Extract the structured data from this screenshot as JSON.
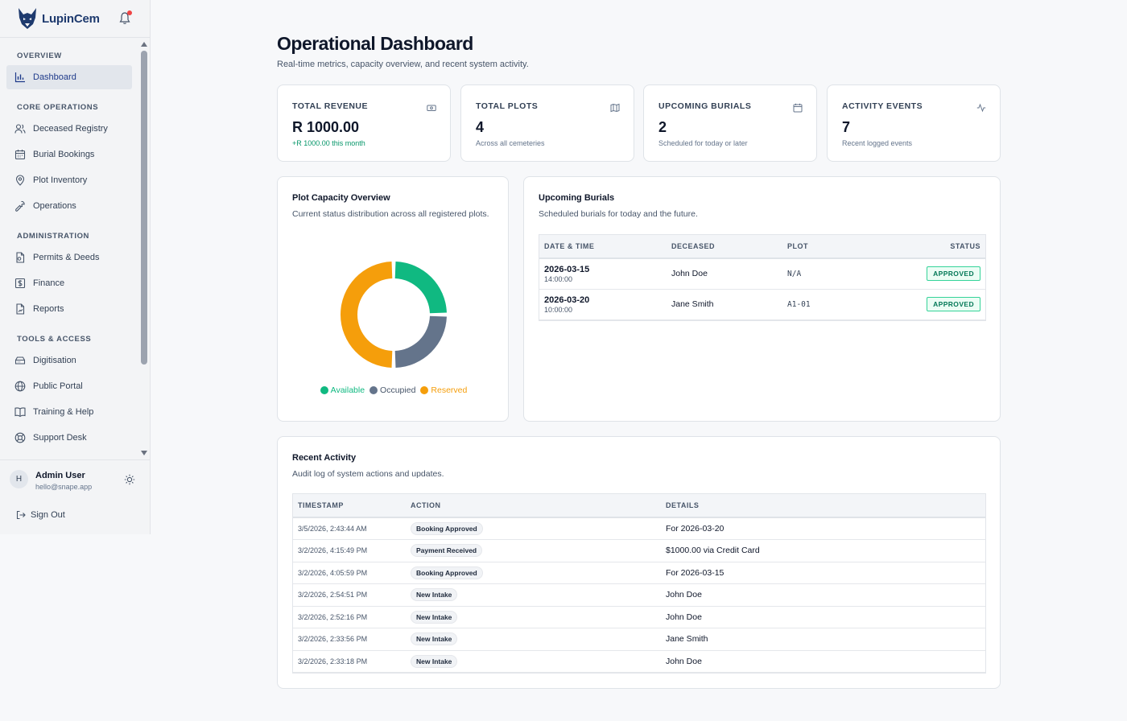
{
  "app": {
    "name": "LupinCem"
  },
  "sidebar": {
    "sections": [
      {
        "title": "OVERVIEW"
      },
      {
        "title": "CORE OPERATIONS"
      },
      {
        "title": "ADMINISTRATION"
      },
      {
        "title": "TOOLS & ACCESS"
      }
    ],
    "items": [
      {
        "label": "Dashboard",
        "icon": "bar-chart-icon",
        "active": true
      },
      {
        "label": "Deceased Registry",
        "icon": "users-icon"
      },
      {
        "label": "Burial Bookings",
        "icon": "calendar-icon"
      },
      {
        "label": "Plot Inventory",
        "icon": "map-pin-icon"
      },
      {
        "label": "Operations",
        "icon": "wrench-icon"
      },
      {
        "label": "Permits & Deeds",
        "icon": "file-icon"
      },
      {
        "label": "Finance",
        "icon": "dollar-icon"
      },
      {
        "label": "Reports",
        "icon": "report-icon"
      },
      {
        "label": "Digitisation",
        "icon": "scanner-icon"
      },
      {
        "label": "Public Portal",
        "icon": "globe-icon"
      },
      {
        "label": "Training & Help",
        "icon": "book-icon"
      },
      {
        "label": "Support Desk",
        "icon": "lifebuoy-icon"
      }
    ],
    "user": {
      "initial": "H",
      "name": "Admin User",
      "email": "hello@snape.app"
    },
    "sign_out": "Sign Out"
  },
  "header": {
    "title": "Operational Dashboard",
    "subtitle": "Real-time metrics, capacity overview, and recent system activity."
  },
  "stats": [
    {
      "label": "TOTAL REVENUE",
      "value": "R 1000.00",
      "hint": "+R 1000.00 this month",
      "icon": "money-icon"
    },
    {
      "label": "TOTAL PLOTS",
      "value": "4",
      "hint": "Across all cemeteries",
      "icon": "map-icon"
    },
    {
      "label": "UPCOMING BURIALS",
      "value": "2",
      "hint": "Scheduled for today or later",
      "icon": "calendar-icon"
    },
    {
      "label": "ACTIVITY EVENTS",
      "value": "7",
      "hint": "Recent logged events",
      "icon": "activity-icon"
    }
  ],
  "capacity": {
    "title": "Plot Capacity Overview",
    "subtitle": "Current status distribution across all registered plots."
  },
  "chart_data": {
    "type": "pie",
    "categories": [
      "Available",
      "Occupied",
      "Reserved"
    ],
    "values": [
      1,
      1,
      2
    ],
    "colors": [
      "#10b981",
      "#64748b",
      "#f59e0b"
    ],
    "legend": "bottom"
  },
  "burials": {
    "title": "Upcoming Burials",
    "subtitle": "Scheduled burials for today and the future.",
    "columns": [
      "DATE & TIME",
      "DECEASED",
      "PLOT",
      "STATUS"
    ],
    "rows": [
      {
        "date": "2026-03-15",
        "time": "14:00:00",
        "deceased": "John Doe",
        "plot": "N/A",
        "status": "APPROVED"
      },
      {
        "date": "2026-03-20",
        "time": "10:00:00",
        "deceased": "Jane Smith",
        "plot": "A1-01",
        "status": "APPROVED"
      }
    ]
  },
  "activity": {
    "title": "Recent Activity",
    "subtitle": "Audit log of system actions and updates.",
    "columns": [
      "TIMESTAMP",
      "ACTION",
      "DETAILS"
    ],
    "rows": [
      {
        "timestamp": "3/5/2026, 2:43:44 AM",
        "action": "Booking Approved",
        "details": "For 2026-03-20"
      },
      {
        "timestamp": "3/2/2026, 4:15:49 PM",
        "action": "Payment Received",
        "details": "$1000.00 via Credit Card"
      },
      {
        "timestamp": "3/2/2026, 4:05:59 PM",
        "action": "Booking Approved",
        "details": "For 2026-03-15"
      },
      {
        "timestamp": "3/2/2026, 2:54:51 PM",
        "action": "New Intake",
        "details": "John Doe"
      },
      {
        "timestamp": "3/2/2026, 2:52:16 PM",
        "action": "New Intake",
        "details": "John Doe"
      },
      {
        "timestamp": "3/2/2026, 2:33:56 PM",
        "action": "New Intake",
        "details": "Jane Smith"
      },
      {
        "timestamp": "3/2/2026, 2:33:18 PM",
        "action": "New Intake",
        "details": "John Doe"
      }
    ]
  }
}
